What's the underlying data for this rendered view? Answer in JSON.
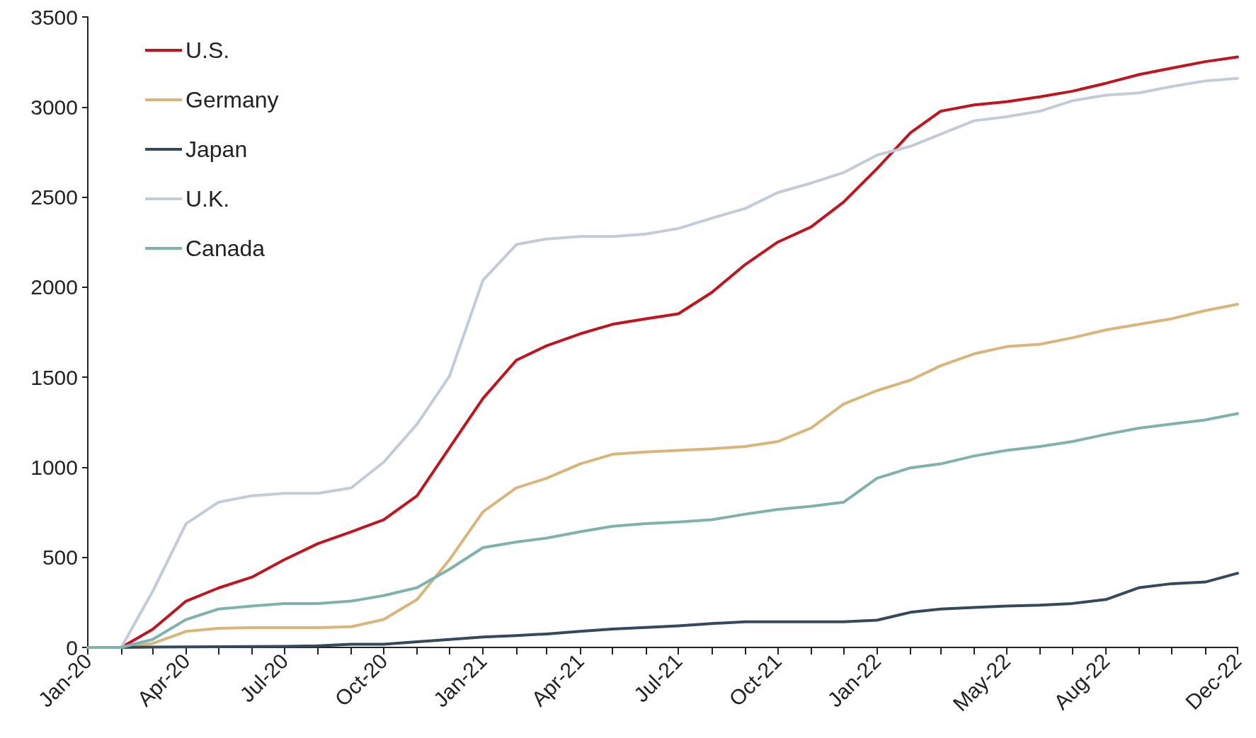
{
  "chart_data": {
    "type": "line",
    "x": [
      "2020-01",
      "2020-02",
      "2020-03",
      "2020-04",
      "2020-05",
      "2020-06",
      "2020-07",
      "2020-08",
      "2020-09",
      "2020-10",
      "2020-11",
      "2020-12",
      "2021-01",
      "2021-02",
      "2021-03",
      "2021-04",
      "2021-05",
      "2021-06",
      "2021-07",
      "2021-08",
      "2021-09",
      "2021-10",
      "2021-11",
      "2021-12",
      "2022-01",
      "2022-02",
      "2022-03",
      "2022-04",
      "2022-05",
      "2022-06",
      "2022-07",
      "2022-08",
      "2022-09",
      "2022-10",
      "2022-11",
      "2022-12"
    ],
    "series": [
      {
        "name": "U.S.",
        "color": "#c0141e",
        "values": [
          0,
          0,
          100,
          257,
          330,
          390,
          487,
          576,
          642,
          709,
          842,
          1108,
          1382,
          1595,
          1675,
          1741,
          1794,
          1825,
          1852,
          1971,
          2126,
          2250,
          2335,
          2472,
          2658,
          2857,
          2977,
          3012,
          3030,
          3057,
          3088,
          3132,
          3181,
          3216,
          3252,
          3278
        ]
      },
      {
        "name": "Germany",
        "color": "#d9b57a",
        "values": [
          0,
          0,
          22,
          89,
          106,
          110,
          110,
          110,
          115,
          155,
          266,
          487,
          753,
          886,
          939,
          1019,
          1072,
          1085,
          1094,
          1103,
          1116,
          1143,
          1218,
          1351,
          1426,
          1484,
          1564,
          1630,
          1670,
          1683,
          1719,
          1763,
          1794,
          1825,
          1870,
          1905
        ]
      },
      {
        "name": "Japan",
        "color": "#34495e",
        "values": [
          0,
          0,
          2,
          3,
          4,
          5,
          6,
          9,
          18,
          18,
          31,
          44,
          58,
          66,
          75,
          89,
          102,
          111,
          120,
          133,
          142,
          142,
          142,
          142,
          151,
          195,
          213,
          222,
          230,
          235,
          244,
          266,
          332,
          354,
          363,
          412
        ]
      },
      {
        "name": "U.K.",
        "color": "#c2cbd9",
        "values": [
          0,
          0,
          310,
          687,
          806,
          842,
          855,
          855,
          886,
          1028,
          1240,
          1506,
          2038,
          2237,
          2268,
          2281,
          2281,
          2295,
          2326,
          2383,
          2437,
          2525,
          2578,
          2636,
          2733,
          2782,
          2849,
          2924,
          2946,
          2977,
          3035,
          3066,
          3079,
          3114,
          3145,
          3159
        ]
      },
      {
        "name": "Canada",
        "color": "#7fb2ac",
        "values": [
          0,
          0,
          44,
          155,
          213,
          230,
          244,
          244,
          257,
          288,
          332,
          434,
          554,
          585,
          607,
          642,
          673,
          687,
          696,
          709,
          740,
          766,
          784,
          806,
          939,
          997,
          1019,
          1063,
          1094,
          1116,
          1143,
          1183,
          1218,
          1240,
          1263,
          1298
        ]
      }
    ],
    "xlim": [
      "2020-01",
      "2022-12"
    ],
    "xticks": [
      {
        "value": "2020-01",
        "label": "Jan-20"
      },
      {
        "value": "2020-02",
        "label": null
      },
      {
        "value": "2020-03",
        "label": null
      },
      {
        "value": "2020-04",
        "label": "Apr-20"
      },
      {
        "value": "2020-05",
        "label": null
      },
      {
        "value": "2020-06",
        "label": null
      },
      {
        "value": "2020-07",
        "label": "Jul-20"
      },
      {
        "value": "2020-08",
        "label": null
      },
      {
        "value": "2020-09",
        "label": null
      },
      {
        "value": "2020-10",
        "label": "Oct-20"
      },
      {
        "value": "2020-11",
        "label": null
      },
      {
        "value": "2020-12",
        "label": null
      },
      {
        "value": "2021-01",
        "label": "Jan-21"
      },
      {
        "value": "2021-02",
        "label": null
      },
      {
        "value": "2021-03",
        "label": null
      },
      {
        "value": "2021-04",
        "label": "Apr-21"
      },
      {
        "value": "2021-05",
        "label": null
      },
      {
        "value": "2021-06",
        "label": null
      },
      {
        "value": "2021-07",
        "label": "Jul-21"
      },
      {
        "value": "2021-08",
        "label": null
      },
      {
        "value": "2021-09",
        "label": null
      },
      {
        "value": "2021-10",
        "label": "Oct-21"
      },
      {
        "value": "2021-11",
        "label": null
      },
      {
        "value": "2021-12",
        "label": null
      },
      {
        "value": "2022-01",
        "label": "Jan-22"
      },
      {
        "value": "2022-02",
        "label": null
      },
      {
        "value": "2022-03",
        "label": null
      },
      {
        "value": "2022-04",
        "label": null
      },
      {
        "value": "2022-05",
        "label": "May-22"
      },
      {
        "value": "2022-06",
        "label": null
      },
      {
        "value": "2022-07",
        "label": null
      },
      {
        "value": "2022-08",
        "label": "Aug-22"
      },
      {
        "value": "2022-09",
        "label": null
      },
      {
        "value": "2022-10",
        "label": null
      },
      {
        "value": "2022-11",
        "label": null
      },
      {
        "value": "2022-12",
        "label": "Dec-22"
      }
    ],
    "ylim": [
      0,
      3500
    ],
    "yticks": [
      0,
      500,
      1000,
      1500,
      2000,
      2500,
      3000,
      3500
    ],
    "grid": false,
    "legend": "top left",
    "marker": "none",
    "line_style": "solid"
  }
}
